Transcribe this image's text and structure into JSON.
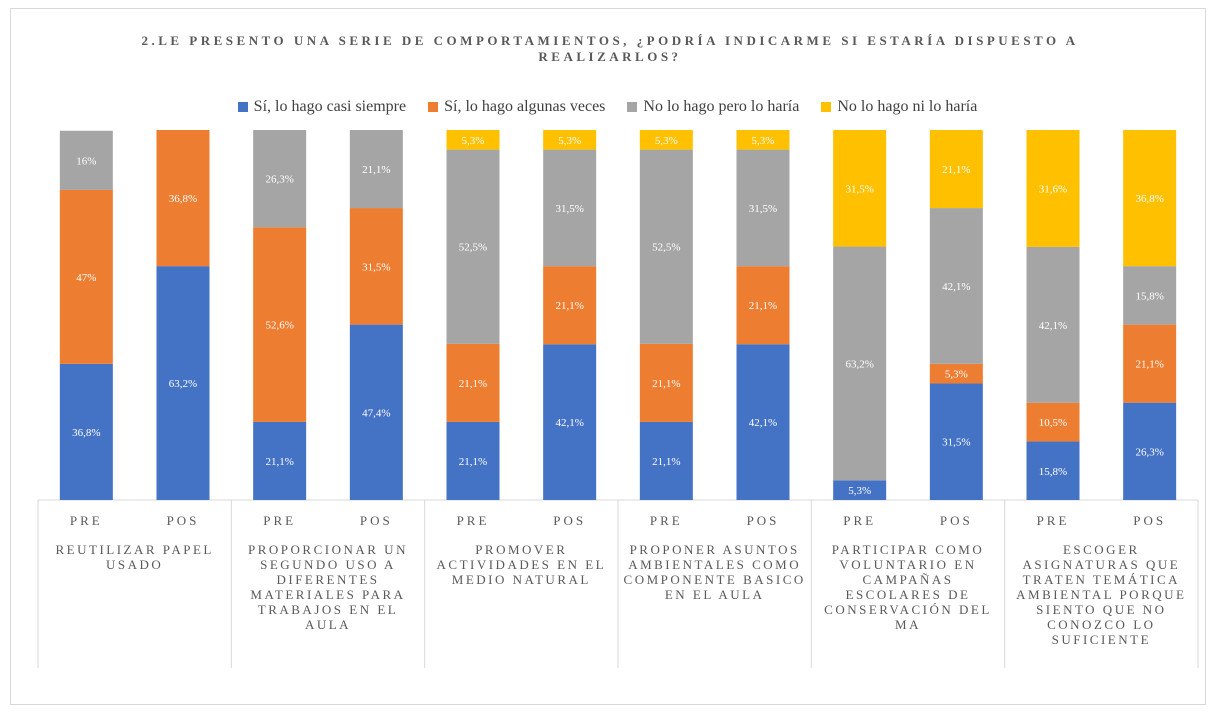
{
  "chart_data": {
    "type": "bar",
    "stacked": true,
    "title": "2.LE PRESENTO UNA SERIE DE COMPORTAMIENTOS, ¿PODRÍA INDICARME SI ESTARÍA DISPUESTO A REALIZARLOS?",
    "series_names": [
      "Sí, lo hago casi siempre",
      "Sí, lo hago algunas veces",
      "No lo hago pero lo haría",
      "No lo hago ni lo haría"
    ],
    "colors": [
      "#4472c4",
      "#ed7d31",
      "#a5a5a5",
      "#ffc000"
    ],
    "legend_position": "top",
    "grid": false,
    "groups": [
      {
        "label": "REUTILIZAR PAPEL USADO",
        "bars": [
          {
            "x": "PRE",
            "values": [
              36.8,
              47,
              16,
              0
            ],
            "labels": [
              "36,8%",
              "47%",
              "16%",
              ""
            ]
          },
          {
            "x": "POS",
            "values": [
              63.2,
              36.8,
              0,
              0
            ],
            "labels": [
              "63,2%",
              "36,8%",
              "",
              ""
            ]
          }
        ]
      },
      {
        "label": "PROPORCIONAR UN SEGUNDO USO A DIFERENTES MATERIALES PARA TRABAJOS EN EL AULA",
        "bars": [
          {
            "x": "PRE",
            "values": [
              21.1,
              52.6,
              26.3,
              0
            ],
            "labels": [
              "21,1%",
              "52,6%",
              "26,3%",
              ""
            ]
          },
          {
            "x": "POS",
            "values": [
              47.4,
              31.5,
              21.1,
              0
            ],
            "labels": [
              "47,4%",
              "31,5%",
              "21,1%",
              ""
            ]
          }
        ]
      },
      {
        "label": "PROMOVER ACTIVIDADES EN EL MEDIO NATURAL",
        "bars": [
          {
            "x": "PRE",
            "values": [
              21.1,
              21.1,
              52.5,
              5.3
            ],
            "labels": [
              "21,1%",
              "21,1%",
              "52,5%",
              "5,3%"
            ]
          },
          {
            "x": "POS",
            "values": [
              42.1,
              21.1,
              31.5,
              5.3
            ],
            "labels": [
              "42,1%",
              "21,1%",
              "31,5%",
              "5,3%"
            ]
          }
        ]
      },
      {
        "label": "PROPONER ASUNTOS AMBIENTALES COMO COMPONENTE BASICO EN EL AULA",
        "bars": [
          {
            "x": "PRE",
            "values": [
              21.1,
              21.1,
              52.5,
              5.3
            ],
            "labels": [
              "21,1%",
              "21,1%",
              "52,5%",
              "5,3%"
            ]
          },
          {
            "x": "POS",
            "values": [
              42.1,
              21.1,
              31.5,
              5.3
            ],
            "labels": [
              "42,1%",
              "21,1%",
              "31,5%",
              "5,3%"
            ]
          }
        ]
      },
      {
        "label": "PARTICIPAR COMO VOLUNTARIO EN CAMPAÑAS ESCOLARES DE CONSERVACIÓN DEL MA",
        "bars": [
          {
            "x": "PRE",
            "values": [
              5.3,
              0,
              63.2,
              31.5
            ],
            "labels": [
              "5,3%",
              "",
              "63,2%",
              "31,5%"
            ]
          },
          {
            "x": "POS",
            "values": [
              31.5,
              5.3,
              42.1,
              21.1
            ],
            "labels": [
              "31,5%",
              "5,3%",
              "42,1%",
              "21,1%"
            ]
          }
        ]
      },
      {
        "label": "ESCOGER ASIGNATURAS QUE TRATEN TEMÁTICA AMBIENTAL PORQUE SIENTO QUE NO CONOZCO LO SUFICIENTE",
        "bars": [
          {
            "x": "PRE",
            "values": [
              15.8,
              10.5,
              42.1,
              31.6
            ],
            "labels": [
              "15,8%",
              "10,5%",
              "42,1%",
              "31,6%"
            ]
          },
          {
            "x": "POS",
            "values": [
              26.3,
              21.1,
              15.8,
              36.8
            ],
            "labels": [
              "26,3%",
              "21,1%",
              "15,8%",
              "36,8%"
            ]
          }
        ]
      }
    ],
    "ylim": [
      0,
      100
    ]
  }
}
